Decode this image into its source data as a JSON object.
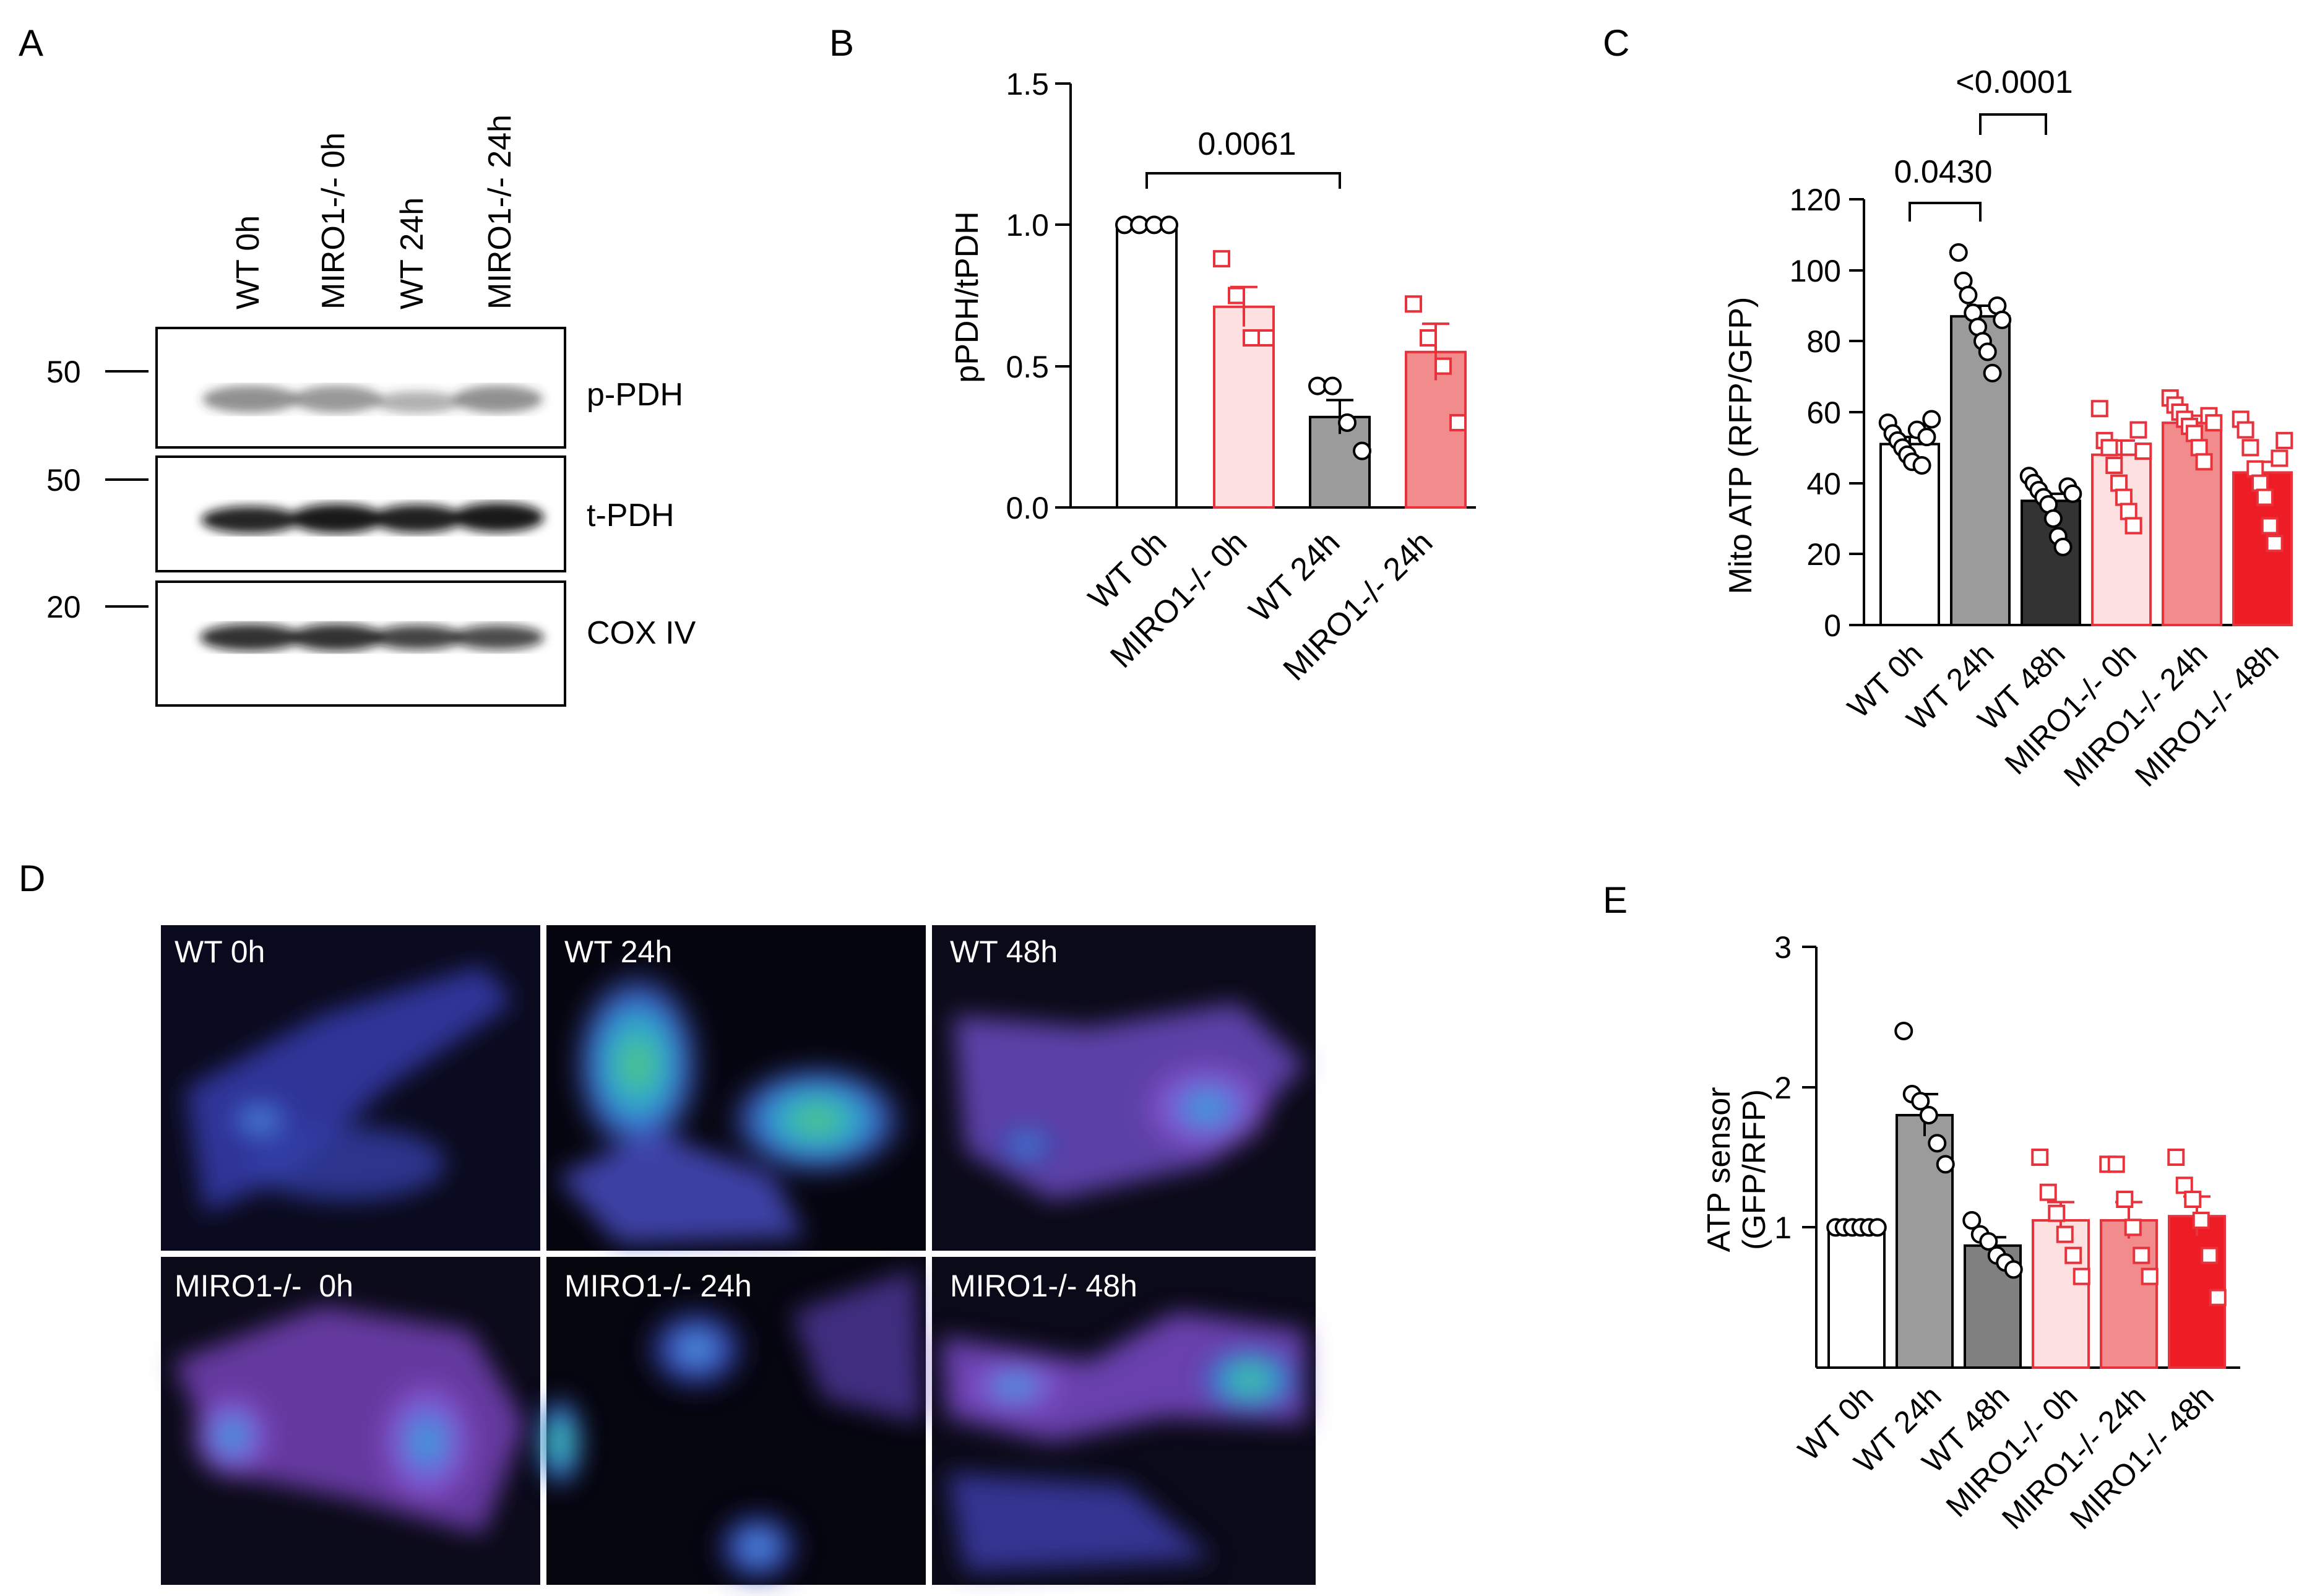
{
  "panels": {
    "A": {
      "letter": "A",
      "lanes": [
        "WT 0h",
        "MIRO1-/- 0h",
        "WT 24h",
        "MIRO1-/- 24h"
      ],
      "blots": [
        {
          "label": "p-PDH",
          "marker": "50",
          "intensity": [
            0.55,
            0.5,
            0.35,
            0.55
          ]
        },
        {
          "label": "t-PDH",
          "marker": "50",
          "intensity": [
            0.9,
            0.95,
            0.92,
            0.95
          ]
        },
        {
          "label": "COX IV",
          "marker": "20",
          "intensity": [
            0.9,
            0.9,
            0.82,
            0.82
          ]
        }
      ]
    },
    "B": {
      "letter": "B",
      "ylabel": "pPDH/tPDH",
      "yticks": [
        "0.0",
        "0.5",
        "1.0",
        "1.5"
      ],
      "annotation": "0.0061",
      "categories": [
        "WT 0h",
        "MIRO1-/- 0h",
        "WT 24h",
        "MIRO1-/- 24h"
      ]
    },
    "C": {
      "letter": "C",
      "ylabel": "Mito ATP (RFP/GFP)",
      "yticks": [
        "0",
        "20",
        "40",
        "60",
        "80",
        "100",
        "120"
      ],
      "annotations": [
        "0.0430",
        "<0.0001"
      ],
      "categories": [
        "WT 0h",
        "WT 24h",
        "WT 48h",
        "MIRO1-/- 0h",
        "MIRO1-/- 24h",
        "MIRO1-/- 48h"
      ]
    },
    "D": {
      "letter": "D",
      "images": [
        "WT 0h",
        "WT 24h",
        "WT 48h",
        "MIRO1-/-  0h",
        "MIRO1-/- 24h",
        "MIRO1-/- 48h"
      ]
    },
    "E": {
      "letter": "E",
      "ylabel_line1": "ATP sensor",
      "ylabel_line2": "(GFP/RFP)",
      "yticks": [
        "1",
        "2",
        "3"
      ],
      "categories": [
        "WT 0h",
        "WT 24h",
        "WT 48h",
        "MIRO1-/- 0h",
        "MIRO1-/- 24h",
        "MIRO1-/- 48h"
      ]
    }
  },
  "chart_data": [
    {
      "panel": "B",
      "type": "bar",
      "ylabel": "pPDH/tPDH",
      "ylim": [
        0,
        1.5
      ],
      "categories": [
        "WT 0h",
        "MIRO1-/- 0h",
        "WT 24h",
        "MIRO1-/- 24h"
      ],
      "values": [
        1.0,
        0.71,
        0.32,
        0.55
      ],
      "sem": [
        0.0,
        0.07,
        0.06,
        0.1
      ],
      "points": [
        [
          1.0,
          1.0,
          1.0,
          1.0
        ],
        [
          0.88,
          0.75,
          0.6,
          0.6
        ],
        [
          0.43,
          0.43,
          0.3,
          0.2
        ],
        [
          0.72,
          0.6,
          0.5,
          0.3
        ]
      ],
      "fills": [
        "#ffffff",
        "#fde0e0",
        "#9b9b9b",
        "#f28b8b"
      ],
      "strokes": [
        "#000000",
        "#e8323c",
        "#000000",
        "#e8323c"
      ],
      "markers": [
        "circle",
        "square",
        "circle",
        "square"
      ],
      "comparisons": [
        {
          "from": 0,
          "to": 2,
          "label": "0.0061"
        }
      ]
    },
    {
      "panel": "C",
      "type": "bar",
      "ylabel": "Mito ATP (RFP/GFP)",
      "ylim": [
        0,
        120
      ],
      "categories": [
        "WT 0h",
        "WT 24h",
        "WT 48h",
        "MIRO1-/- 0h",
        "MIRO1-/- 24h",
        "MIRO1-/- 48h"
      ],
      "values": [
        51,
        87,
        35,
        48,
        57,
        43
      ],
      "sem": [
        2,
        3,
        2,
        4,
        2,
        3
      ],
      "points": [
        [
          57,
          54,
          52,
          50,
          48,
          46,
          55,
          45,
          53,
          58
        ],
        [
          105,
          97,
          93,
          88,
          84,
          80,
          77,
          71,
          90,
          86
        ],
        [
          42,
          40,
          38,
          36,
          34,
          30,
          25,
          22,
          39,
          37
        ],
        [
          61,
          52,
          50,
          45,
          40,
          36,
          32,
          28,
          55,
          49
        ],
        [
          64,
          62,
          60,
          58,
          56,
          54,
          50,
          46,
          59,
          57
        ],
        [
          58,
          55,
          50,
          44,
          40,
          36,
          28,
          23,
          47,
          52
        ]
      ],
      "fills": [
        "#ffffff",
        "#9b9b9b",
        "#333333",
        "#fde0e0",
        "#f28b8b",
        "#ee1c25"
      ],
      "strokes": [
        "#000000",
        "#000000",
        "#000000",
        "#e8323c",
        "#e8323c",
        "#e8323c"
      ],
      "markers": [
        "circle",
        "circle",
        "circle",
        "square",
        "square",
        "square"
      ],
      "comparisons": [
        {
          "from": 0,
          "to": 1,
          "label": "0.0430"
        },
        {
          "from": 1,
          "to": 2,
          "label": "<0.0001"
        }
      ]
    },
    {
      "panel": "E",
      "type": "bar",
      "ylabel": "ATP sensor (GFP/RFP)",
      "ylim": [
        0,
        3
      ],
      "categories": [
        "WT 0h",
        "WT 24h",
        "WT 48h",
        "MIRO1-/- 0h",
        "MIRO1-/- 24h",
        "MIRO1-/- 48h"
      ],
      "values": [
        1.0,
        1.8,
        0.87,
        1.05,
        1.05,
        1.08
      ],
      "sem": [
        0.0,
        0.15,
        0.06,
        0.13,
        0.13,
        0.14
      ],
      "points": [
        [
          1.0,
          1.0,
          1.0,
          1.0,
          1.0,
          1.0
        ],
        [
          2.4,
          1.95,
          1.9,
          1.8,
          1.6,
          1.45
        ],
        [
          1.05,
          0.95,
          0.9,
          0.8,
          0.75,
          0.7
        ],
        [
          1.5,
          1.25,
          1.1,
          0.95,
          0.8,
          0.65
        ],
        [
          1.45,
          1.45,
          1.2,
          1.0,
          0.8,
          0.65
        ],
        [
          1.5,
          1.3,
          1.2,
          1.05,
          0.8,
          0.5
        ]
      ],
      "fills": [
        "#ffffff",
        "#9b9b9b",
        "#808080",
        "#fde0e0",
        "#f28b8b",
        "#ee1c25"
      ],
      "strokes": [
        "#000000",
        "#000000",
        "#000000",
        "#e8323c",
        "#e8323c",
        "#e8323c"
      ],
      "markers": [
        "circle",
        "circle",
        "circle",
        "square",
        "square",
        "square"
      ],
      "comparisons": []
    }
  ]
}
